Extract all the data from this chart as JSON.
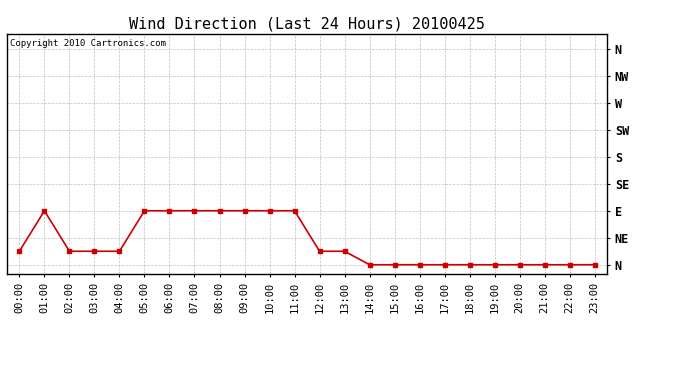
{
  "title": "Wind Direction (Last 24 Hours) 20100425",
  "copyright": "Copyright 2010 Cartronics.com",
  "x_labels": [
    "00:00",
    "01:00",
    "02:00",
    "03:00",
    "04:00",
    "05:00",
    "06:00",
    "07:00",
    "08:00",
    "09:00",
    "10:00",
    "11:00",
    "12:00",
    "13:00",
    "14:00",
    "15:00",
    "16:00",
    "17:00",
    "18:00",
    "19:00",
    "20:00",
    "21:00",
    "22:00",
    "23:00"
  ],
  "y_ticks": [
    0,
    45,
    90,
    135,
    180,
    225,
    270,
    315,
    360
  ],
  "y_labels": [
    "N",
    "NE",
    "E",
    "SE",
    "S",
    "SW",
    "W",
    "NW",
    "N"
  ],
  "wind_data": [
    22.5,
    90,
    22.5,
    22.5,
    22.5,
    90,
    90,
    90,
    90,
    90,
    90,
    90,
    22.5,
    22.5,
    0,
    0,
    0,
    0,
    0,
    0,
    0,
    0,
    0,
    0
  ],
  "line_color": "#cc0000",
  "marker": "s",
  "marker_size": 3,
  "background_color": "#ffffff",
  "grid_color": "#b0b0b0",
  "title_fontsize": 11,
  "copyright_fontsize": 6.5,
  "tick_fontsize": 7.5,
  "ylabel_fontsize": 8.5
}
